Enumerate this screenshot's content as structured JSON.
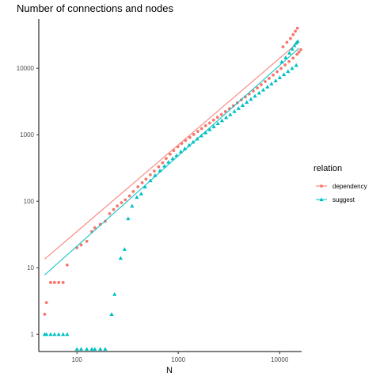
{
  "chart_data": {
    "type": "scatter",
    "title": "Number of connections and nodes",
    "xlabel": "N",
    "ylabel": "",
    "x_scale": "log10",
    "y_scale": "log10",
    "xlim": [
      42,
      16500
    ],
    "ylim": [
      0.55,
      55000
    ],
    "x_ticks": [
      {
        "value": 100,
        "label": "100"
      },
      {
        "value": 1000,
        "label": "1000"
      },
      {
        "value": 10000,
        "label": "10000"
      }
    ],
    "y_ticks": [
      {
        "value": 1,
        "label": "1"
      },
      {
        "value": 10,
        "label": "10"
      },
      {
        "value": 100,
        "label": "100"
      },
      {
        "value": 1000,
        "label": "1000"
      },
      {
        "value": 10000,
        "label": "10000"
      }
    ],
    "grid": false,
    "legend": {
      "title": "relation",
      "position": "right"
    },
    "series": [
      {
        "name": "dependency",
        "color": "#F8766D",
        "marker": "circle",
        "points": [
          [
            48,
            2
          ],
          [
            50,
            3
          ],
          [
            55,
            6
          ],
          [
            60,
            6
          ],
          [
            66,
            6
          ],
          [
            73,
            6
          ],
          [
            80,
            11
          ],
          [
            100,
            20
          ],
          [
            110,
            22
          ],
          [
            125,
            25
          ],
          [
            140,
            35
          ],
          [
            150,
            40
          ],
          [
            170,
            45
          ],
          [
            190,
            50
          ],
          [
            210,
            65
          ],
          [
            230,
            75
          ],
          [
            250,
            85
          ],
          [
            275,
            95
          ],
          [
            300,
            105
          ],
          [
            330,
            120
          ],
          [
            360,
            140
          ],
          [
            400,
            165
          ],
          [
            440,
            190
          ],
          [
            480,
            215
          ],
          [
            530,
            250
          ],
          [
            580,
            285
          ],
          [
            640,
            330
          ],
          [
            700,
            380
          ],
          [
            760,
            440
          ],
          [
            830,
            510
          ],
          [
            900,
            580
          ],
          [
            990,
            660
          ],
          [
            1080,
            740
          ],
          [
            1180,
            820
          ],
          [
            1300,
            910
          ],
          [
            1420,
            1010
          ],
          [
            1560,
            1120
          ],
          [
            1700,
            1240
          ],
          [
            1860,
            1370
          ],
          [
            2040,
            1500
          ],
          [
            2230,
            1660
          ],
          [
            2440,
            1830
          ],
          [
            2670,
            2020
          ],
          [
            2920,
            2230
          ],
          [
            3200,
            2470
          ],
          [
            3500,
            2730
          ],
          [
            3830,
            3020
          ],
          [
            4190,
            3340
          ],
          [
            4590,
            3700
          ],
          [
            5020,
            4100
          ],
          [
            5500,
            4560
          ],
          [
            6020,
            5070
          ],
          [
            6590,
            5650
          ],
          [
            7210,
            6300
          ],
          [
            7890,
            7050
          ],
          [
            8640,
            7900
          ],
          [
            9460,
            8850
          ],
          [
            10350,
            9950
          ],
          [
            11330,
            11200
          ],
          [
            12400,
            12600
          ],
          [
            13570,
            14200
          ],
          [
            14850,
            16200
          ],
          [
            15500,
            17500
          ],
          [
            16200,
            19000
          ],
          [
            10800,
            21000
          ],
          [
            11800,
            24500
          ],
          [
            12800,
            28000
          ],
          [
            13600,
            32000
          ],
          [
            14300,
            36000
          ],
          [
            15000,
            40000
          ]
        ],
        "fit_line": {
          "x": [
            48,
            15500
          ],
          "y": [
            13.5,
            25000
          ]
        }
      },
      {
        "name": "suggest",
        "color": "#00BFC4",
        "marker": "triangle",
        "points": [
          [
            48,
            1
          ],
          [
            50,
            1
          ],
          [
            55,
            1
          ],
          [
            60,
            1
          ],
          [
            66,
            1
          ],
          [
            73,
            1
          ],
          [
            80,
            1
          ],
          [
            100,
            0.6
          ],
          [
            110,
            0.6
          ],
          [
            125,
            0.6
          ],
          [
            140,
            0.6
          ],
          [
            150,
            0.6
          ],
          [
            170,
            0.6
          ],
          [
            190,
            0.6
          ],
          [
            220,
            2
          ],
          [
            235,
            4
          ],
          [
            270,
            14
          ],
          [
            295,
            19
          ],
          [
            320,
            55
          ],
          [
            350,
            85
          ],
          [
            390,
            115
          ],
          [
            430,
            130
          ],
          [
            470,
            165
          ],
          [
            530,
            205
          ],
          [
            590,
            245
          ],
          [
            660,
            290
          ],
          [
            730,
            340
          ],
          [
            800,
            390
          ],
          [
            880,
            440
          ],
          [
            960,
            490
          ],
          [
            1060,
            560
          ],
          [
            1160,
            620
          ],
          [
            1280,
            700
          ],
          [
            1400,
            780
          ],
          [
            1540,
            870
          ],
          [
            1690,
            970
          ],
          [
            1860,
            1080
          ],
          [
            2040,
            1200
          ],
          [
            2240,
            1330
          ],
          [
            2460,
            1480
          ],
          [
            2700,
            1640
          ],
          [
            2970,
            1820
          ],
          [
            3260,
            2020
          ],
          [
            3580,
            2250
          ],
          [
            3930,
            2500
          ],
          [
            4320,
            2780
          ],
          [
            4740,
            3090
          ],
          [
            5210,
            3440
          ],
          [
            5720,
            3830
          ],
          [
            6280,
            4260
          ],
          [
            6900,
            4740
          ],
          [
            7580,
            5270
          ],
          [
            8320,
            5860
          ],
          [
            9140,
            6520
          ],
          [
            10040,
            7260
          ],
          [
            11030,
            8070
          ],
          [
            12110,
            8990
          ],
          [
            13300,
            10000
          ],
          [
            14610,
            11100
          ],
          [
            10500,
            12500
          ],
          [
            11500,
            14500
          ],
          [
            12500,
            17000
          ],
          [
            13300,
            19500
          ],
          [
            14000,
            22000
          ],
          [
            14600,
            24000
          ],
          [
            15100,
            25500
          ]
        ],
        "fit_line": {
          "x": [
            48,
            15500
          ],
          "y": [
            7.8,
            20000
          ]
        }
      }
    ]
  }
}
